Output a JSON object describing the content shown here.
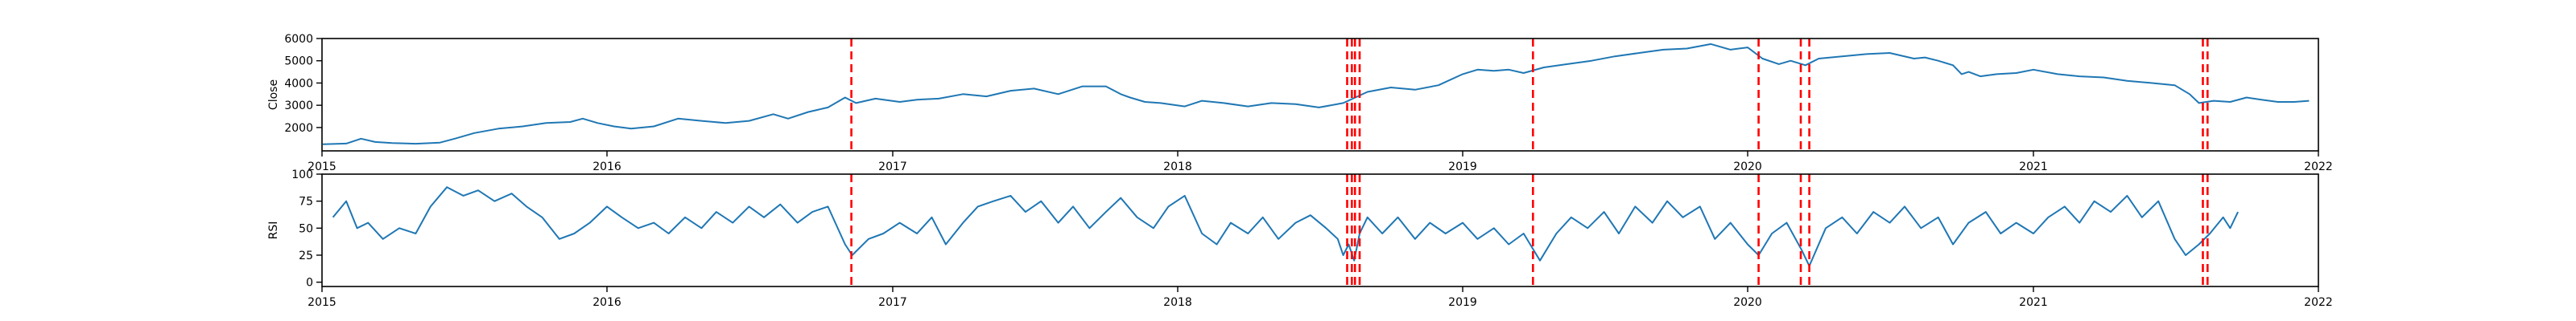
{
  "colors": {
    "series": "#1f77b4",
    "events": "#ff0000",
    "axes": "#000000"
  },
  "chart_data": [
    {
      "type": "line",
      "title": "",
      "xlabel": "",
      "ylabel": "Close",
      "xlim": [
        "2015-01-01",
        "2022-01-01"
      ],
      "ylim": [
        950,
        6000
      ],
      "grid": false,
      "x_ticks": [
        "2015",
        "2016",
        "2017",
        "2018",
        "2019",
        "2020",
        "2021",
        "2022"
      ],
      "y_ticks": [
        2000,
        3000,
        4000,
        5000,
        6000
      ],
      "series": [
        {
          "points": [
            [
              "2015-01-02",
              1250
            ],
            [
              "2015-02-01",
              1280
            ],
            [
              "2015-02-20",
              1500
            ],
            [
              "2015-03-10",
              1350
            ],
            [
              "2015-04-01",
              1300
            ],
            [
              "2015-05-01",
              1270
            ],
            [
              "2015-06-01",
              1320
            ],
            [
              "2015-06-20",
              1500
            ],
            [
              "2015-07-15",
              1750
            ],
            [
              "2015-08-15",
              1950
            ],
            [
              "2015-09-15",
              2050
            ],
            [
              "2015-10-15",
              2200
            ],
            [
              "2015-11-15",
              2250
            ],
            [
              "2015-12-01",
              2400
            ],
            [
              "2015-12-20",
              2200
            ],
            [
              "2016-01-10",
              2050
            ],
            [
              "2016-02-01",
              1950
            ],
            [
              "2016-03-01",
              2050
            ],
            [
              "2016-04-01",
              2400
            ],
            [
              "2016-05-01",
              2300
            ],
            [
              "2016-06-01",
              2200
            ],
            [
              "2016-07-01",
              2300
            ],
            [
              "2016-08-01",
              2600
            ],
            [
              "2016-08-20",
              2400
            ],
            [
              "2016-09-15",
              2700
            ],
            [
              "2016-10-10",
              2900
            ],
            [
              "2016-11-01",
              3350
            ],
            [
              "2016-11-15",
              3100
            ],
            [
              "2016-12-10",
              3300
            ],
            [
              "2017-01-10",
              3150
            ],
            [
              "2017-02-01",
              3250
            ],
            [
              "2017-03-01",
              3300
            ],
            [
              "2017-04-01",
              3500
            ],
            [
              "2017-05-01",
              3400
            ],
            [
              "2017-06-01",
              3650
            ],
            [
              "2017-07-01",
              3750
            ],
            [
              "2017-08-01",
              3500
            ],
            [
              "2017-09-01",
              3850
            ],
            [
              "2017-10-01",
              3850
            ],
            [
              "2017-10-20",
              3500
            ],
            [
              "2017-11-01",
              3350
            ],
            [
              "2017-11-20",
              3150
            ],
            [
              "2017-12-10",
              3100
            ],
            [
              "2018-01-10",
              2950
            ],
            [
              "2018-02-01",
              3200
            ],
            [
              "2018-03-01",
              3100
            ],
            [
              "2018-04-01",
              2950
            ],
            [
              "2018-05-01",
              3100
            ],
            [
              "2018-06-01",
              3050
            ],
            [
              "2018-07-01",
              2900
            ],
            [
              "2018-08-01",
              3100
            ],
            [
              "2018-09-01",
              3600
            ],
            [
              "2018-10-01",
              3800
            ],
            [
              "2018-11-01",
              3700
            ],
            [
              "2018-12-01",
              3900
            ],
            [
              "2019-01-01",
              4400
            ],
            [
              "2019-01-20",
              4600
            ],
            [
              "2019-02-10",
              4550
            ],
            [
              "2019-03-01",
              4600
            ],
            [
              "2019-03-20",
              4450
            ],
            [
              "2019-04-15",
              4700
            ],
            [
              "2019-05-15",
              4850
            ],
            [
              "2019-06-15",
              5000
            ],
            [
              "2019-07-15",
              5200
            ],
            [
              "2019-08-15",
              5350
            ],
            [
              "2019-09-15",
              5500
            ],
            [
              "2019-10-15",
              5550
            ],
            [
              "2019-11-15",
              5750
            ],
            [
              "2019-12-10",
              5500
            ],
            [
              "2020-01-01",
              5600
            ],
            [
              "2020-01-20",
              5100
            ],
            [
              "2020-02-10",
              4850
            ],
            [
              "2020-02-25",
              5000
            ],
            [
              "2020-03-15",
              4800
            ],
            [
              "2020-04-01",
              5100
            ],
            [
              "2020-05-01",
              5200
            ],
            [
              "2020-06-01",
              5300
            ],
            [
              "2020-07-01",
              5350
            ],
            [
              "2020-08-01",
              5100
            ],
            [
              "2020-08-15",
              5150
            ],
            [
              "2020-09-01",
              5000
            ],
            [
              "2020-09-20",
              4800
            ],
            [
              "2020-10-01",
              4400
            ],
            [
              "2020-10-10",
              4500
            ],
            [
              "2020-10-25",
              4300
            ],
            [
              "2020-11-15",
              4400
            ],
            [
              "2020-12-10",
              4450
            ],
            [
              "2021-01-01",
              4600
            ],
            [
              "2021-02-01",
              4400
            ],
            [
              "2021-03-01",
              4300
            ],
            [
              "2021-04-01",
              4250
            ],
            [
              "2021-05-01",
              4100
            ],
            [
              "2021-06-01",
              4000
            ],
            [
              "2021-07-01",
              3900
            ],
            [
              "2021-07-20",
              3500
            ],
            [
              "2021-08-01",
              3100
            ],
            [
              "2021-08-20",
              3200
            ],
            [
              "2021-09-10",
              3150
            ],
            [
              "2021-10-01",
              3350
            ],
            [
              "2021-10-20",
              3250
            ],
            [
              "2021-11-10",
              3150
            ],
            [
              "2021-12-01",
              3150
            ],
            [
              "2021-12-20",
              3200
            ]
          ]
        }
      ]
    },
    {
      "type": "line",
      "title": "",
      "xlabel": "",
      "ylabel": "RSI",
      "xlim": [
        "2015-01-01",
        "2022-01-01"
      ],
      "ylim": [
        -4,
        100
      ],
      "grid": false,
      "x_ticks": [
        "2015",
        "2016",
        "2017",
        "2018",
        "2019",
        "2020",
        "2021",
        "2022"
      ],
      "y_ticks": [
        0,
        25,
        50,
        75,
        100
      ],
      "series": [
        {
          "points": [
            [
              "2015-01-15",
              60
            ],
            [
              "2015-02-01",
              75
            ],
            [
              "2015-02-15",
              50
            ],
            [
              "2015-03-01",
              55
            ],
            [
              "2015-03-20",
              40
            ],
            [
              "2015-04-10",
              50
            ],
            [
              "2015-05-01",
              45
            ],
            [
              "2015-05-20",
              70
            ],
            [
              "2015-06-10",
              88
            ],
            [
              "2015-07-01",
              80
            ],
            [
              "2015-07-20",
              85
            ],
            [
              "2015-08-10",
              75
            ],
            [
              "2015-09-01",
              82
            ],
            [
              "2015-09-20",
              70
            ],
            [
              "2015-10-10",
              60
            ],
            [
              "2015-11-01",
              40
            ],
            [
              "2015-11-20",
              45
            ],
            [
              "2015-12-10",
              55
            ],
            [
              "2016-01-01",
              70
            ],
            [
              "2016-01-20",
              60
            ],
            [
              "2016-02-10",
              50
            ],
            [
              "2016-03-01",
              55
            ],
            [
              "2016-03-20",
              45
            ],
            [
              "2016-04-10",
              60
            ],
            [
              "2016-05-01",
              50
            ],
            [
              "2016-05-20",
              65
            ],
            [
              "2016-06-10",
              55
            ],
            [
              "2016-07-01",
              70
            ],
            [
              "2016-07-20",
              60
            ],
            [
              "2016-08-10",
              72
            ],
            [
              "2016-09-01",
              55
            ],
            [
              "2016-09-20",
              65
            ],
            [
              "2016-10-10",
              70
            ],
            [
              "2016-11-01",
              35
            ],
            [
              "2016-11-10",
              25
            ],
            [
              "2016-12-01",
              40
            ],
            [
              "2016-12-20",
              45
            ],
            [
              "2017-01-10",
              55
            ],
            [
              "2017-02-01",
              45
            ],
            [
              "2017-02-20",
              60
            ],
            [
              "2017-03-10",
              35
            ],
            [
              "2017-04-01",
              55
            ],
            [
              "2017-04-20",
              70
            ],
            [
              "2017-05-10",
              75
            ],
            [
              "2017-06-01",
              80
            ],
            [
              "2017-06-20",
              65
            ],
            [
              "2017-07-10",
              75
            ],
            [
              "2017-08-01",
              55
            ],
            [
              "2017-08-20",
              70
            ],
            [
              "2017-09-10",
              50
            ],
            [
              "2017-10-01",
              65
            ],
            [
              "2017-10-20",
              78
            ],
            [
              "2017-11-10",
              60
            ],
            [
              "2017-12-01",
              50
            ],
            [
              "2017-12-20",
              70
            ],
            [
              "2018-01-10",
              80
            ],
            [
              "2018-02-01",
              45
            ],
            [
              "2018-02-20",
              35
            ],
            [
              "2018-03-10",
              55
            ],
            [
              "2018-04-01",
              45
            ],
            [
              "2018-04-20",
              60
            ],
            [
              "2018-05-10",
              40
            ],
            [
              "2018-06-01",
              55
            ],
            [
              "2018-06-20",
              62
            ],
            [
              "2018-07-10",
              50
            ],
            [
              "2018-07-25",
              40
            ],
            [
              "2018-08-01",
              25
            ],
            [
              "2018-08-08",
              35
            ],
            [
              "2018-08-15",
              20
            ],
            [
              "2018-08-22",
              45
            ],
            [
              "2018-09-01",
              60
            ],
            [
              "2018-09-20",
              45
            ],
            [
              "2018-10-10",
              60
            ],
            [
              "2018-11-01",
              40
            ],
            [
              "2018-11-20",
              55
            ],
            [
              "2018-12-10",
              45
            ],
            [
              "2019-01-01",
              55
            ],
            [
              "2019-01-20",
              40
            ],
            [
              "2019-02-10",
              50
            ],
            [
              "2019-03-01",
              35
            ],
            [
              "2019-03-20",
              45
            ],
            [
              "2019-04-10",
              20
            ],
            [
              "2019-05-01",
              45
            ],
            [
              "2019-05-20",
              60
            ],
            [
              "2019-06-10",
              50
            ],
            [
              "2019-07-01",
              65
            ],
            [
              "2019-07-20",
              45
            ],
            [
              "2019-08-10",
              70
            ],
            [
              "2019-09-01",
              55
            ],
            [
              "2019-09-20",
              75
            ],
            [
              "2019-10-10",
              60
            ],
            [
              "2019-11-01",
              70
            ],
            [
              "2019-11-20",
              40
            ],
            [
              "2019-12-10",
              55
            ],
            [
              "2020-01-01",
              35
            ],
            [
              "2020-01-15",
              25
            ],
            [
              "2020-02-01",
              45
            ],
            [
              "2020-02-20",
              55
            ],
            [
              "2020-03-10",
              30
            ],
            [
              "2020-03-20",
              15
            ],
            [
              "2020-04-10",
              50
            ],
            [
              "2020-05-01",
              60
            ],
            [
              "2020-05-20",
              45
            ],
            [
              "2020-06-10",
              65
            ],
            [
              "2020-07-01",
              55
            ],
            [
              "2020-07-20",
              70
            ],
            [
              "2020-08-10",
              50
            ],
            [
              "2020-09-01",
              60
            ],
            [
              "2020-09-20",
              35
            ],
            [
              "2020-10-10",
              55
            ],
            [
              "2020-11-01",
              65
            ],
            [
              "2020-11-20",
              45
            ],
            [
              "2020-12-10",
              55
            ],
            [
              "2021-01-01",
              45
            ],
            [
              "2021-01-20",
              60
            ],
            [
              "2021-02-10",
              70
            ],
            [
              "2021-03-01",
              55
            ],
            [
              "2021-03-20",
              75
            ],
            [
              "2021-04-10",
              65
            ],
            [
              "2021-05-01",
              80
            ],
            [
              "2021-05-20",
              60
            ],
            [
              "2021-06-10",
              75
            ],
            [
              "2021-07-01",
              40
            ],
            [
              "2021-07-15",
              25
            ],
            [
              "2021-08-01",
              35
            ],
            [
              "2021-08-15",
              45
            ],
            [
              "2021-09-01",
              60
            ],
            [
              "2021-09-10",
              50
            ],
            [
              "2021-09-20",
              65
            ]
          ]
        }
      ]
    }
  ],
  "event_dates": [
    "2016-11-09",
    "2018-08-06",
    "2018-08-12",
    "2018-08-16",
    "2018-08-22",
    "2019-04-01",
    "2020-01-15",
    "2020-03-09",
    "2020-03-20",
    "2021-08-06",
    "2021-08-12"
  ]
}
